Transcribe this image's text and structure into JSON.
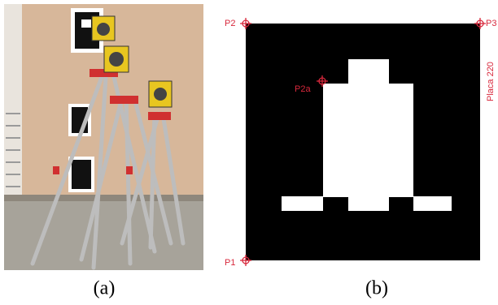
{
  "panels": [
    {
      "caption": "(a)"
    },
    {
      "caption": "(b)",
      "labels": {
        "p1": "P1",
        "p2": "P2",
        "p3": "P3",
        "p2a": "P2a",
        "plate": "Placa 220"
      }
    }
  ]
}
